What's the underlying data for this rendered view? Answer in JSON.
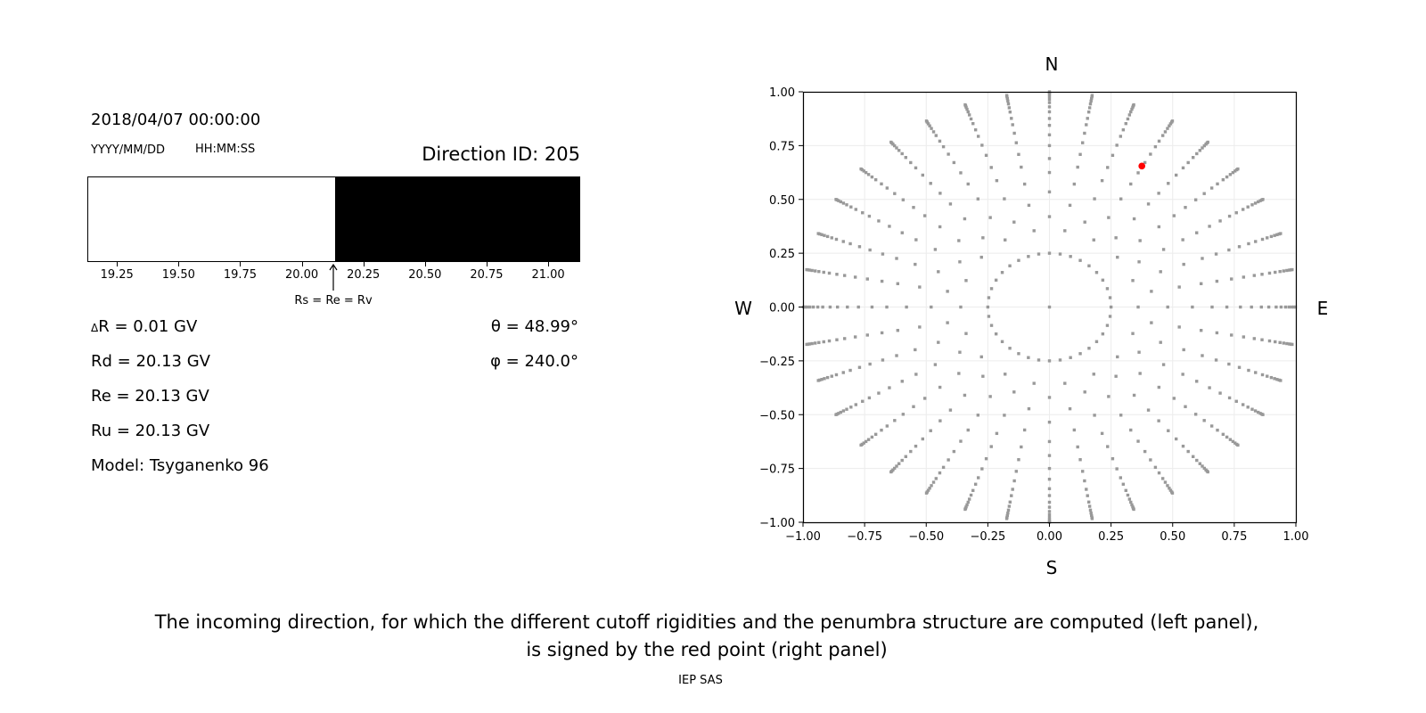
{
  "left_panel": {
    "datetime": "2018/04/07 00:00:00",
    "date_format": "YYYY/MM/DD",
    "time_format": "HH:MM:SS",
    "direction_id": "Direction ID: 205",
    "penumbra": {
      "xlim": [
        19.13,
        21.13
      ],
      "cutoff": 20.13,
      "allowed_color": "#000000",
      "forbidden_color": "#ffffff",
      "ticks": [
        "19.25",
        "19.50",
        "19.75",
        "20.00",
        "20.25",
        "20.50",
        "20.75",
        "21.00"
      ],
      "annotation": "Rs = Re = Rv"
    },
    "params": {
      "delta_symbol": "Δ",
      "delta_r": "R = 0.01 GV",
      "rd": "Rd = 20.13 GV",
      "re": "Re = 20.13 GV",
      "ru": "Ru = 20.13 GV",
      "model": "Model: Tsyganenko 96",
      "theta": "θ = 48.99°",
      "phi": "φ = 240.0°"
    }
  },
  "chart_data": {
    "type": "scatter",
    "xlim": [
      -1.0,
      1.0
    ],
    "ylim": [
      -1.0,
      1.0
    ],
    "grid": true,
    "xticks": [
      "−1.00",
      "−0.75",
      "−0.50",
      "−0.25",
      "0.00",
      "0.25",
      "0.50",
      "0.75",
      "1.00"
    ],
    "yticks": [
      "−1.00",
      "−0.75",
      "−0.50",
      "−0.25",
      "0.00",
      "0.25",
      "0.50",
      "0.75",
      "1.00"
    ],
    "compass": {
      "top": "N",
      "bottom": "S",
      "left": "W",
      "right": "E"
    },
    "point_color": "#999999",
    "highlight_color": "#ff0000",
    "direction_grid": {
      "azimuth_step_deg": 10,
      "center": [
        0,
        0
      ],
      "ring_radius": 0.25,
      "ray_radii_even": [
        0.42,
        0.535,
        0.625,
        0.69,
        0.75,
        0.8,
        0.844,
        0.876,
        0.907,
        0.93,
        0.95,
        0.965,
        0.978,
        0.988,
        0.995,
        1.0
      ],
      "ray_radii_odd": [
        0.36,
        0.48,
        0.58,
        0.66,
        0.72,
        0.775,
        0.82,
        0.86,
        0.89,
        0.92,
        0.94,
        0.958,
        0.972,
        0.983,
        0.992,
        0.998
      ]
    },
    "highlight_point": {
      "x": 0.375,
      "y": 0.655
    }
  },
  "caption": {
    "line1": "The incoming direction, for which the different cutoff rigidities and the penumbra structure are computed (left panel),",
    "line2": "is signed by the red point (right panel)",
    "credit": "IEP SAS"
  }
}
